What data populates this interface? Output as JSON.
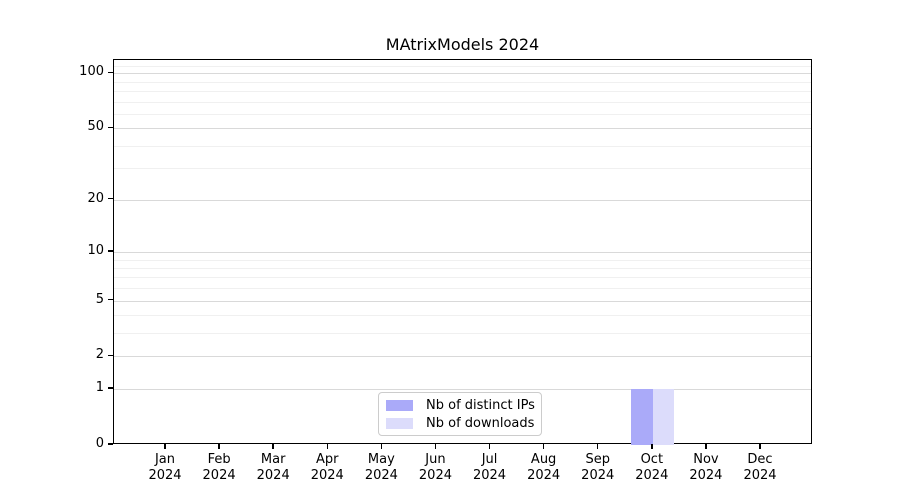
{
  "chart_data": {
    "type": "bar",
    "title": "MAtrixModels 2024",
    "categories": [
      {
        "label": "Jan",
        "sub": "2024"
      },
      {
        "label": "Feb",
        "sub": "2024"
      },
      {
        "label": "Mar",
        "sub": "2024"
      },
      {
        "label": "Apr",
        "sub": "2024"
      },
      {
        "label": "May",
        "sub": "2024"
      },
      {
        "label": "Jun",
        "sub": "2024"
      },
      {
        "label": "Jul",
        "sub": "2024"
      },
      {
        "label": "Aug",
        "sub": "2024"
      },
      {
        "label": "Sep",
        "sub": "2024"
      },
      {
        "label": "Oct",
        "sub": "2024"
      },
      {
        "label": "Nov",
        "sub": "2024"
      },
      {
        "label": "Dec",
        "sub": "2024"
      }
    ],
    "series": [
      {
        "name": "Nb of distinct IPs",
        "color": "#aaaaf9",
        "values": [
          0,
          0,
          0,
          0,
          0,
          0,
          0,
          0,
          0,
          1,
          0,
          0
        ]
      },
      {
        "name": "Nb of downloads",
        "color": "#dcdcfb",
        "values": [
          0,
          0,
          0,
          0,
          0,
          0,
          0,
          0,
          0,
          1,
          0,
          0
        ]
      }
    ],
    "y_axis": {
      "scale": "log1p",
      "min": 0,
      "max": 118,
      "tick_labels": [
        100,
        50,
        20,
        10,
        5,
        2,
        1,
        0
      ],
      "major_gridlines": [
        1,
        2,
        5,
        10,
        20,
        50,
        100
      ],
      "minor_gridlines": [
        3,
        4,
        6,
        7,
        8,
        9,
        30,
        40,
        60,
        70,
        80,
        90,
        110
      ]
    },
    "x_axis": {
      "label_line2": "2024"
    },
    "legend": {
      "position": "inside-bottom-center",
      "grid": "on"
    },
    "colors": {
      "grid_major": "#d9d9d9",
      "grid_minor": "#f0f0f0",
      "spine": "#000000"
    }
  }
}
